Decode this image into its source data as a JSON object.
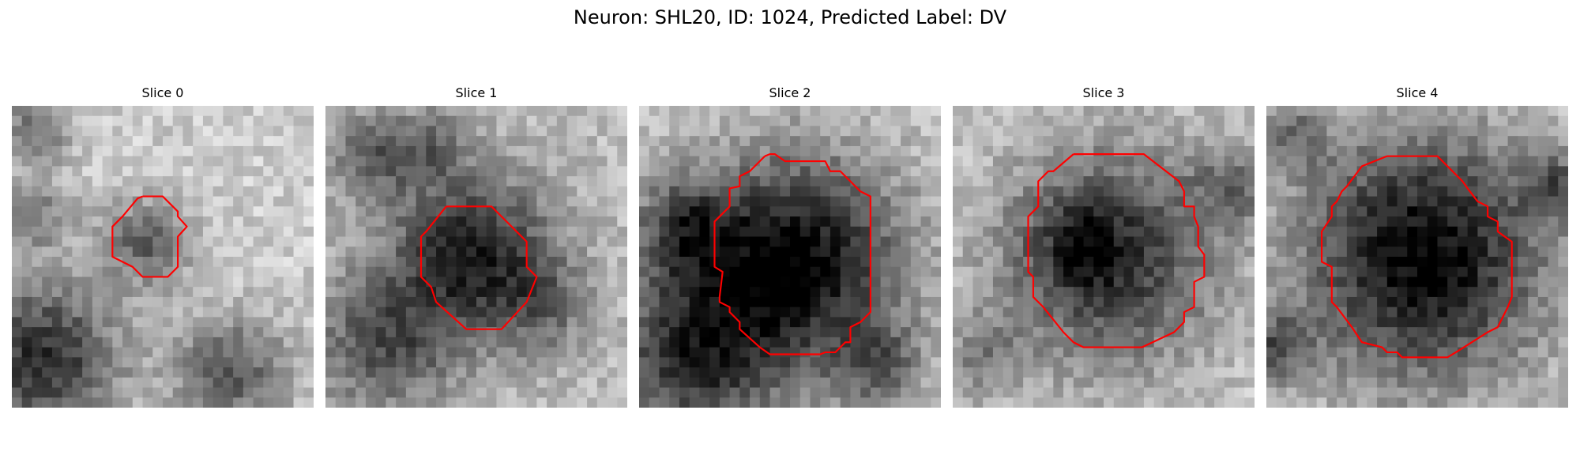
{
  "figure": {
    "title": "Neuron: SHL20, ID: 1024, Predicted Label: DV",
    "colormap": "gray",
    "contour_color": "#ff0000",
    "image_size": 30,
    "panels": [
      {
        "title": "Slice 0",
        "base": 0.8,
        "blobs": [
          [
            13.5,
            13.5,
            3.0,
            0.42
          ],
          [
            3.0,
            25.0,
            5.5,
            0.62
          ],
          [
            22.0,
            26.5,
            4.0,
            0.45
          ],
          [
            2.5,
            2.0,
            2.5,
            0.35
          ],
          [
            2.5,
            10.5,
            2.5,
            0.3
          ]
        ],
        "contour": [
          [
            13,
            9
          ],
          [
            15,
            9
          ],
          [
            16.5,
            10.5
          ],
          [
            16.5,
            11
          ],
          [
            17.4,
            12
          ],
          [
            16.5,
            13
          ],
          [
            16.5,
            16
          ],
          [
            15.5,
            17
          ],
          [
            13,
            17
          ],
          [
            12,
            16
          ],
          [
            10,
            15
          ],
          [
            10,
            12
          ],
          [
            11,
            11
          ],
          [
            12.5,
            9.2
          ],
          [
            13,
            9
          ]
        ]
      },
      {
        "title": "Slice 1",
        "base": 0.74,
        "blobs": [
          [
            14.5,
            14.5,
            5.5,
            0.62
          ],
          [
            6.0,
            23.5,
            5.0,
            0.42
          ],
          [
            4.5,
            5.0,
            3.0,
            0.35
          ],
          [
            10.5,
            4.0,
            2.5,
            0.3
          ],
          [
            21.5,
            20.0,
            3.5,
            0.28
          ]
        ],
        "contour": [
          [
            12,
            10
          ],
          [
            16.5,
            10
          ],
          [
            20,
            13.5
          ],
          [
            20,
            16
          ],
          [
            21,
            17
          ],
          [
            20,
            19.5
          ],
          [
            17.5,
            22.2
          ],
          [
            14,
            22.2
          ],
          [
            11,
            19.5
          ],
          [
            10.5,
            18
          ],
          [
            9.5,
            17
          ],
          [
            9.5,
            13
          ],
          [
            10,
            12.5
          ],
          [
            12,
            10
          ]
        ]
      },
      {
        "title": "Slice 2",
        "base": 0.78,
        "blobs": [
          [
            15.5,
            15.5,
            7.5,
            0.78
          ],
          [
            5.0,
            25.0,
            6.0,
            0.55
          ],
          [
            4.5,
            12.0,
            3.5,
            0.4
          ],
          [
            24.0,
            26.0,
            3.0,
            0.35
          ]
        ],
        "contour": [
          [
            12.5,
            5
          ],
          [
            13,
            4.8
          ],
          [
            13.5,
            4.8
          ],
          [
            14.5,
            5.5
          ],
          [
            18.5,
            5.5
          ],
          [
            19,
            6.5
          ],
          [
            20,
            6.5
          ],
          [
            22,
            8.5
          ],
          [
            23,
            9
          ],
          [
            23,
            20.5
          ],
          [
            22,
            21.5
          ],
          [
            21,
            22
          ],
          [
            21,
            23.5
          ],
          [
            20.5,
            23.5
          ],
          [
            19.5,
            24.5
          ],
          [
            18.5,
            24.5
          ],
          [
            18,
            24.7
          ],
          [
            13,
            24.7
          ],
          [
            12,
            24
          ],
          [
            10,
            22.2
          ],
          [
            10,
            21.5
          ],
          [
            9,
            20.5
          ],
          [
            9,
            20
          ],
          [
            8,
            19.5
          ],
          [
            8,
            19
          ],
          [
            8.3,
            16.5
          ],
          [
            7.5,
            16
          ],
          [
            7.5,
            11.5
          ],
          [
            9,
            10
          ],
          [
            9,
            8.2
          ],
          [
            10,
            8
          ],
          [
            10,
            7
          ],
          [
            11,
            6.5
          ],
          [
            11.5,
            6
          ],
          [
            12.5,
            5
          ]
        ]
      },
      {
        "title": "Slice 3",
        "base": 0.8,
        "blobs": [
          [
            15.5,
            15.0,
            8.0,
            0.6
          ],
          [
            13.0,
            14.0,
            3.0,
            0.25
          ],
          [
            3.0,
            25.0,
            3.0,
            0.25
          ],
          [
            28.0,
            8.0,
            3.0,
            0.3
          ]
        ],
        "contour": [
          [
            12,
            4.8
          ],
          [
            19,
            4.8
          ],
          [
            22.5,
            7.5
          ],
          [
            23,
            8.5
          ],
          [
            23,
            10
          ],
          [
            24,
            10
          ],
          [
            24,
            11
          ],
          [
            24.4,
            12
          ],
          [
            24.4,
            14
          ],
          [
            25,
            14.8
          ],
          [
            25,
            17
          ],
          [
            24,
            17.5
          ],
          [
            24,
            20
          ],
          [
            23,
            20.5
          ],
          [
            23,
            21.5
          ],
          [
            22,
            22.5
          ],
          [
            18.8,
            24
          ],
          [
            13,
            24
          ],
          [
            12,
            23.5
          ],
          [
            11,
            22.5
          ],
          [
            9,
            20
          ],
          [
            8,
            19
          ],
          [
            8,
            17
          ],
          [
            7.5,
            16.5
          ],
          [
            7.5,
            11
          ],
          [
            8.5,
            10
          ],
          [
            8.5,
            7.5
          ],
          [
            9.5,
            6.5
          ],
          [
            10,
            6.5
          ],
          [
            12,
            4.8
          ]
        ]
      },
      {
        "title": "Slice 4",
        "base": 0.78,
        "blobs": [
          [
            15.5,
            15.0,
            8.5,
            0.78
          ],
          [
            1.0,
            24.0,
            2.5,
            0.4
          ],
          [
            29.0,
            8.0,
            2.5,
            0.35
          ],
          [
            2.5,
            3.0,
            2.5,
            0.3
          ]
        ],
        "contour": [
          [
            12,
            5
          ],
          [
            17,
            5
          ],
          [
            19.5,
            7.5
          ],
          [
            20,
            8.2
          ],
          [
            21,
            9.5
          ],
          [
            22,
            10
          ],
          [
            22,
            11
          ],
          [
            23,
            11.5
          ],
          [
            23,
            12.5
          ],
          [
            24.4,
            13.5
          ],
          [
            24.4,
            19
          ],
          [
            24,
            20
          ],
          [
            23.5,
            21
          ],
          [
            23,
            22
          ],
          [
            22,
            22.5
          ],
          [
            19,
            24.4
          ],
          [
            18,
            25
          ],
          [
            13.5,
            25
          ],
          [
            13,
            24.5
          ],
          [
            12,
            24.5
          ],
          [
            11.5,
            24
          ],
          [
            9.5,
            23.5
          ],
          [
            8.5,
            22
          ],
          [
            7,
            20
          ],
          [
            6.5,
            19.5
          ],
          [
            6.5,
            16
          ],
          [
            5.5,
            15.5
          ],
          [
            5.5,
            12.5
          ],
          [
            6.5,
            11
          ],
          [
            6.5,
            10
          ],
          [
            7,
            9.5
          ],
          [
            7.5,
            8.5
          ],
          [
            8,
            8
          ],
          [
            9.5,
            6
          ],
          [
            12,
            5
          ]
        ]
      }
    ]
  }
}
